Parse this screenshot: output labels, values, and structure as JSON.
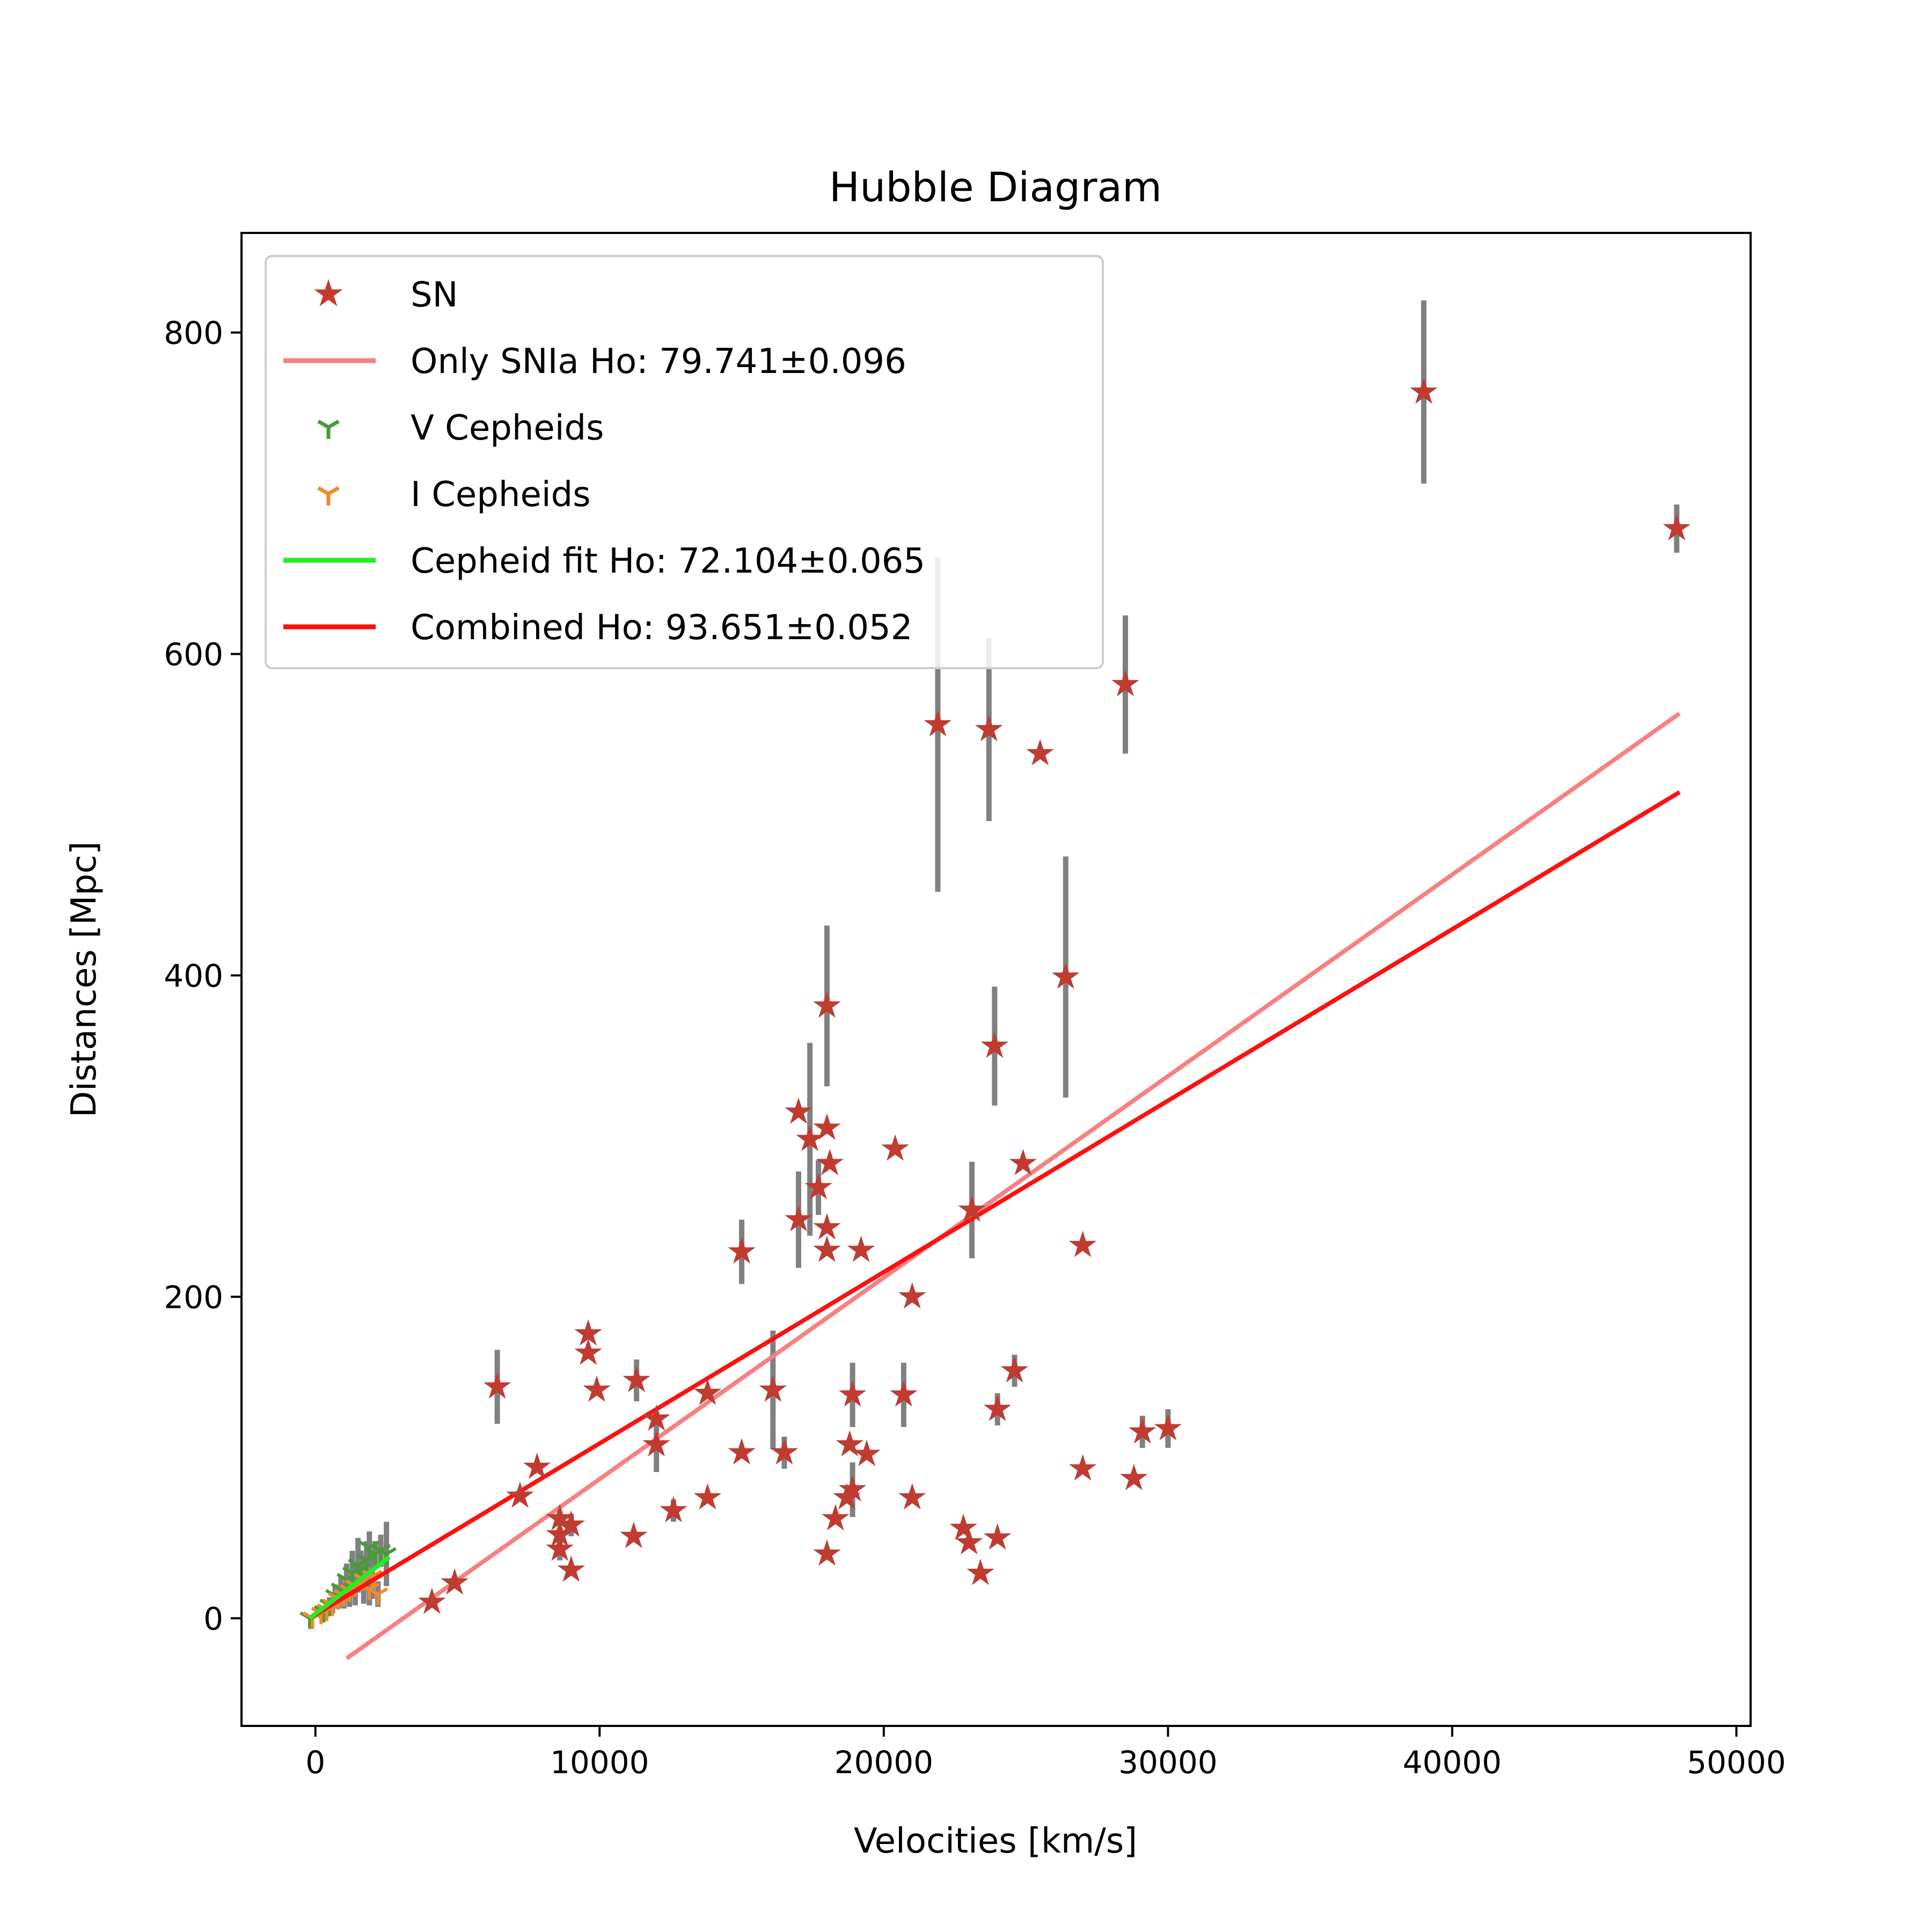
{
  "chart_data": {
    "type": "scatter",
    "title": "Hubble Diagram",
    "xlabel": "Velocities [km/s]",
    "ylabel": "Distances [Mpc]",
    "xlim": [
      -2600,
      50500
    ],
    "ylim": [
      -67,
      862
    ],
    "x_ticks": [
      0,
      10000,
      20000,
      30000,
      40000,
      50000
    ],
    "y_ticks": [
      0,
      200,
      400,
      600,
      800
    ],
    "grid": false,
    "legend_position": "top-left",
    "colors": {
      "sn": "#c33a2f",
      "errorbar": "#808080",
      "only_snia_line": "#f88080",
      "v_cepheids": "#4a9a3a",
      "i_cepheids": "#f08a2a",
      "cepheid_fit": "#22ee22",
      "combined_line": "#ff1010"
    },
    "legend": [
      {
        "label": "SN",
        "marker": "star",
        "color_key": "sn"
      },
      {
        "label": "Only SNIa Ho: 79.741±0.096",
        "marker": "line",
        "color_key": "only_snia_line"
      },
      {
        "label": "V Cepheids",
        "marker": "tri_down",
        "color_key": "v_cepheids"
      },
      {
        "label": "I Cepheids",
        "marker": "tri_down",
        "color_key": "i_cepheids"
      },
      {
        "label": "Cepheid fit Ho: 72.104±0.065",
        "marker": "line",
        "color_key": "cepheid_fit"
      },
      {
        "label": "Combined Ho: 93.651±0.052",
        "marker": "line",
        "color_key": "combined_line"
      }
    ],
    "lines": [
      {
        "name": "Only SNIa Ho: 79.741±0.096",
        "color_key": "only_snia_line",
        "x": [
          1100,
          48000
        ],
        "y": [
          -25,
          563
        ]
      },
      {
        "name": "Combined Ho: 93.651±0.052",
        "color_key": "combined_line",
        "x": [
          -200,
          48000
        ],
        "y": [
          0,
          514
        ]
      },
      {
        "name": "Cepheid fit Ho: 72.104±0.065",
        "color_key": "cepheid_fit",
        "x": [
          -200,
          2600
        ],
        "y": [
          0,
          38
        ]
      }
    ],
    "sn_points": [
      [
        39000,
        763,
        57
      ],
      [
        47900,
        678,
        15
      ],
      [
        21900,
        556,
        104
      ],
      [
        23700,
        553,
        57
      ],
      [
        25500,
        538,
        0
      ],
      [
        28500,
        581,
        43
      ],
      [
        26400,
        399,
        75
      ],
      [
        18000,
        381,
        50
      ],
      [
        23900,
        356,
        37
      ],
      [
        17000,
        315,
        0
      ],
      [
        17400,
        298,
        60
      ],
      [
        18000,
        305,
        0
      ],
      [
        17700,
        268,
        17
      ],
      [
        18100,
        283,
        0
      ],
      [
        17000,
        248,
        30
      ],
      [
        18000,
        243,
        0
      ],
      [
        18000,
        229,
        0
      ],
      [
        20400,
        292,
        0
      ],
      [
        24900,
        283,
        0
      ],
      [
        23100,
        254,
        30
      ],
      [
        19200,
        229,
        0
      ],
      [
        27000,
        232,
        0
      ],
      [
        15000,
        228,
        20
      ],
      [
        21000,
        200,
        0
      ],
      [
        9600,
        177,
        0
      ],
      [
        9600,
        165,
        0
      ],
      [
        9900,
        142,
        0
      ],
      [
        6400,
        144,
        23
      ],
      [
        11300,
        148,
        13
      ],
      [
        12000,
        124,
        0
      ],
      [
        13800,
        140,
        0
      ],
      [
        16100,
        142,
        37
      ],
      [
        18900,
        139,
        20
      ],
      [
        20700,
        139,
        20
      ],
      [
        24000,
        130,
        10
      ],
      [
        24600,
        154,
        10
      ],
      [
        12000,
        108,
        17
      ],
      [
        15000,
        103,
        0
      ],
      [
        16500,
        103,
        10
      ],
      [
        19400,
        102,
        0
      ],
      [
        18800,
        108,
        0
      ],
      [
        7800,
        94,
        0
      ],
      [
        7200,
        76,
        0
      ],
      [
        8600,
        62,
        0
      ],
      [
        9000,
        58,
        7
      ],
      [
        8600,
        52,
        0
      ],
      [
        8600,
        43,
        7
      ],
      [
        11200,
        51,
        0
      ],
      [
        12600,
        67,
        7
      ],
      [
        13800,
        75,
        0
      ],
      [
        18700,
        75,
        0
      ],
      [
        18900,
        80,
        17
      ],
      [
        21000,
        75,
        0
      ],
      [
        18300,
        62,
        0
      ],
      [
        22800,
        56,
        0
      ],
      [
        23000,
        47,
        0
      ],
      [
        24000,
        50,
        0
      ],
      [
        18000,
        40,
        0
      ],
      [
        9000,
        30,
        0
      ],
      [
        23400,
        28,
        0
      ],
      [
        27000,
        93,
        0
      ],
      [
        28800,
        87,
        0
      ],
      [
        29100,
        116,
        10
      ],
      [
        30000,
        118,
        12
      ],
      [
        4100,
        10,
        0
      ],
      [
        4900,
        22,
        0
      ]
    ],
    "v_cepheids": [
      [
        -200,
        0,
        0
      ],
      [
        300,
        4,
        3
      ],
      [
        500,
        8,
        5
      ],
      [
        700,
        14,
        7
      ],
      [
        900,
        18,
        8
      ],
      [
        1100,
        24,
        10
      ],
      [
        1300,
        28,
        14
      ],
      [
        1500,
        33,
        17
      ],
      [
        1600,
        30,
        12
      ],
      [
        1800,
        36,
        12
      ],
      [
        1900,
        44,
        10
      ],
      [
        2100,
        40,
        8
      ],
      [
        2300,
        42,
        10
      ],
      [
        2500,
        40,
        20
      ]
    ],
    "i_cepheids": [
      [
        -100,
        0,
        0
      ],
      [
        200,
        3,
        3
      ],
      [
        400,
        5,
        4
      ],
      [
        600,
        8,
        5
      ],
      [
        800,
        12,
        6
      ],
      [
        1000,
        14,
        8
      ],
      [
        1200,
        17,
        10
      ],
      [
        1400,
        20,
        12
      ],
      [
        1700,
        24,
        15
      ],
      [
        1900,
        18,
        10
      ],
      [
        2000,
        26,
        14
      ],
      [
        2200,
        15,
        8
      ]
    ]
  }
}
